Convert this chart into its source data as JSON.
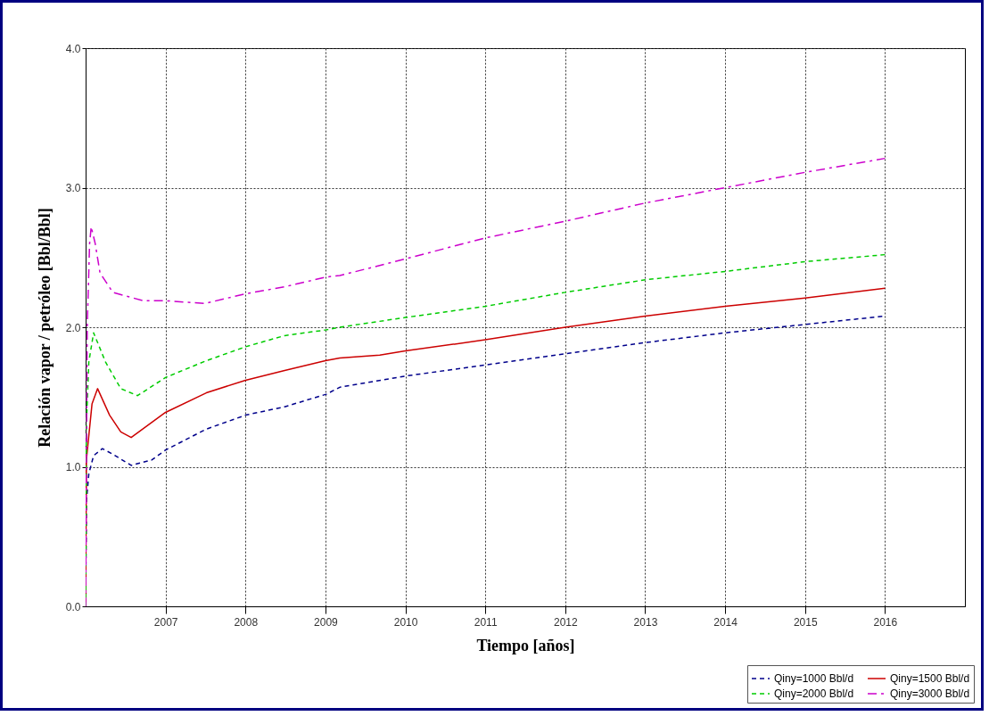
{
  "chart_data": {
    "type": "line",
    "xlabel": "Tiempo [años]",
    "ylabel": "Relación vapor / petróleo [Bbl/Bbl]",
    "xlim": [
      2006,
      2017
    ],
    "ylim": [
      0,
      4
    ],
    "xticks": [
      2007,
      2008,
      2009,
      2010,
      2011,
      2012,
      2013,
      2014,
      2015,
      2016
    ],
    "yticks": [
      {
        "value": 0,
        "label": "0.0"
      },
      {
        "value": 1,
        "label": "1.0"
      },
      {
        "value": 2,
        "label": "2.0"
      },
      {
        "value": 3,
        "label": "3.0"
      },
      {
        "value": 4,
        "label": "4.0"
      }
    ],
    "grid": true,
    "legend": "bottom right",
    "series": [
      {
        "name": "Qiny=1000 Bbl/d",
        "color": "#00008b",
        "line_style": "dashed",
        "x": [
          2006.0,
          2006.01,
          2006.04,
          2006.1,
          2006.21,
          2006.34,
          2006.57,
          2006.83,
          2007.0,
          2007.51,
          2008.0,
          2008.49,
          2009.01,
          2009.18,
          2010.0,
          2011.0,
          2012.0,
          2013.0,
          2014.0,
          2015.0,
          2016.0
        ],
        "values": [
          0,
          0.75,
          0.95,
          1.08,
          1.13,
          1.09,
          1.01,
          1.05,
          1.12,
          1.27,
          1.37,
          1.43,
          1.52,
          1.57,
          1.65,
          1.73,
          1.81,
          1.89,
          1.96,
          2.02,
          2.08
        ]
      },
      {
        "name": "Qiny=1500 Bbl/d",
        "color": "#cc0000",
        "line_style": "solid",
        "x": [
          2006.0,
          2006.01,
          2006.08,
          2006.15,
          2006.3,
          2006.44,
          2006.57,
          2007.0,
          2007.51,
          2008.0,
          2008.49,
          2009.0,
          2009.18,
          2009.68,
          2010.0,
          2011.0,
          2012.0,
          2013.0,
          2014.0,
          2015.0,
          2016.0
        ],
        "values": [
          0,
          1.05,
          1.45,
          1.56,
          1.37,
          1.25,
          1.21,
          1.39,
          1.53,
          1.62,
          1.69,
          1.76,
          1.78,
          1.8,
          1.83,
          1.91,
          2.0,
          2.08,
          2.15,
          2.21,
          2.28
        ]
      },
      {
        "name": "Qiny=2000 Bbl/d",
        "color": "#00cc00",
        "line_style": "dashed",
        "x": [
          2006.0,
          2006.01,
          2006.04,
          2006.1,
          2006.25,
          2006.44,
          2006.65,
          2007.0,
          2007.51,
          2008.0,
          2008.49,
          2009.0,
          2009.18,
          2010.0,
          2011.0,
          2012.0,
          2013.0,
          2014.0,
          2015.0,
          2016.0
        ],
        "values": [
          0,
          1.3,
          1.75,
          1.96,
          1.75,
          1.56,
          1.51,
          1.64,
          1.76,
          1.86,
          1.94,
          1.98,
          2.0,
          2.07,
          2.15,
          2.25,
          2.34,
          2.4,
          2.47,
          2.52
        ]
      },
      {
        "name": "Qiny=3000 Bbl/d",
        "color": "#cc00cc",
        "line_style": "dashdot",
        "x": [
          2006.0,
          2006.02,
          2006.05,
          2006.07,
          2006.12,
          2006.18,
          2006.34,
          2006.72,
          2007.0,
          2007.49,
          2008.0,
          2008.49,
          2009.01,
          2009.18,
          2010.0,
          2011.0,
          2012.0,
          2013.0,
          2014.0,
          2015.0,
          2016.0
        ],
        "values": [
          0,
          2.0,
          2.6,
          2.72,
          2.6,
          2.39,
          2.25,
          2.19,
          2.19,
          2.17,
          2.24,
          2.29,
          2.36,
          2.37,
          2.49,
          2.64,
          2.76,
          2.89,
          3.0,
          3.11,
          3.21
        ]
      }
    ]
  }
}
